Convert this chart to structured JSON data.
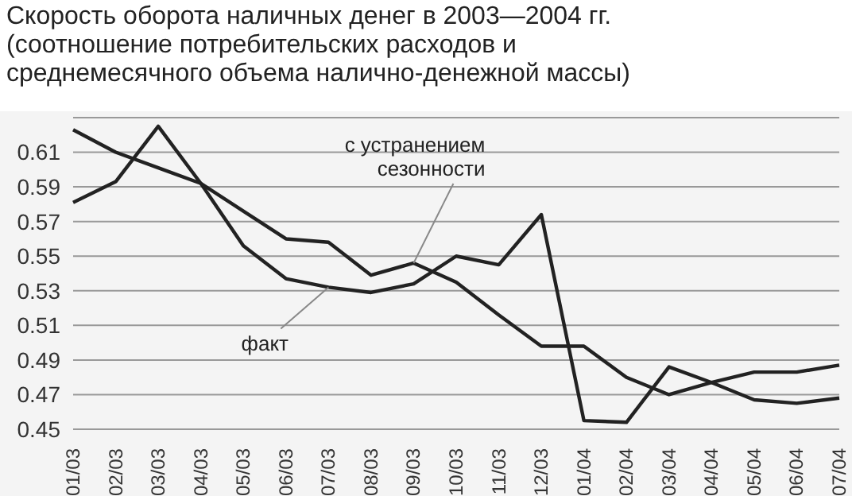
{
  "chart_data": {
    "type": "line",
    "title": "Скорость оборота наличных денег в 2003—2004 гг. (соотношение потребительских расходов и среднемесячного объема налично-денежной массы)",
    "categories": [
      "01/03",
      "02/03",
      "03/03",
      "04/03",
      "05/03",
      "06/03",
      "07/03",
      "08/03",
      "09/03",
      "10/03",
      "11/03",
      "12/03",
      "01/04",
      "02/04",
      "03/04",
      "04/04",
      "05/04",
      "06/04",
      "07/04"
    ],
    "series": [
      {
        "color": "#222222",
        "values": [
          0.581,
          0.593,
          0.625,
          0.592,
          0.556,
          0.537,
          0.532,
          0.529,
          0.534,
          0.55,
          0.545,
          0.574,
          0.455,
          0.454,
          0.486,
          0.477,
          0.467,
          0.465,
          0.468
        ]
      },
      {
        "color": "#222222",
        "values": [
          0.623,
          0.61,
          0.601,
          0.592,
          0.576,
          0.56,
          0.558,
          0.539,
          0.546,
          0.535,
          0.516,
          0.498,
          0.498,
          0.48,
          0.47,
          0.477,
          0.483,
          0.483,
          0.487
        ]
      }
    ],
    "annotations": [
      {
        "text": "факт",
        "x": "07/03",
        "y": 0.532
      },
      {
        "text": "с устранением сезонности",
        "x": "09/03",
        "y": 0.546
      }
    ],
    "ylim": [
      0.45,
      0.63
    ],
    "yticks": [
      0.45,
      0.47,
      0.49,
      0.51,
      0.53,
      0.55,
      0.57,
      0.59,
      0.61
    ],
    "grid": "y",
    "legend": false,
    "marker": "none",
    "line_style": "solid"
  }
}
